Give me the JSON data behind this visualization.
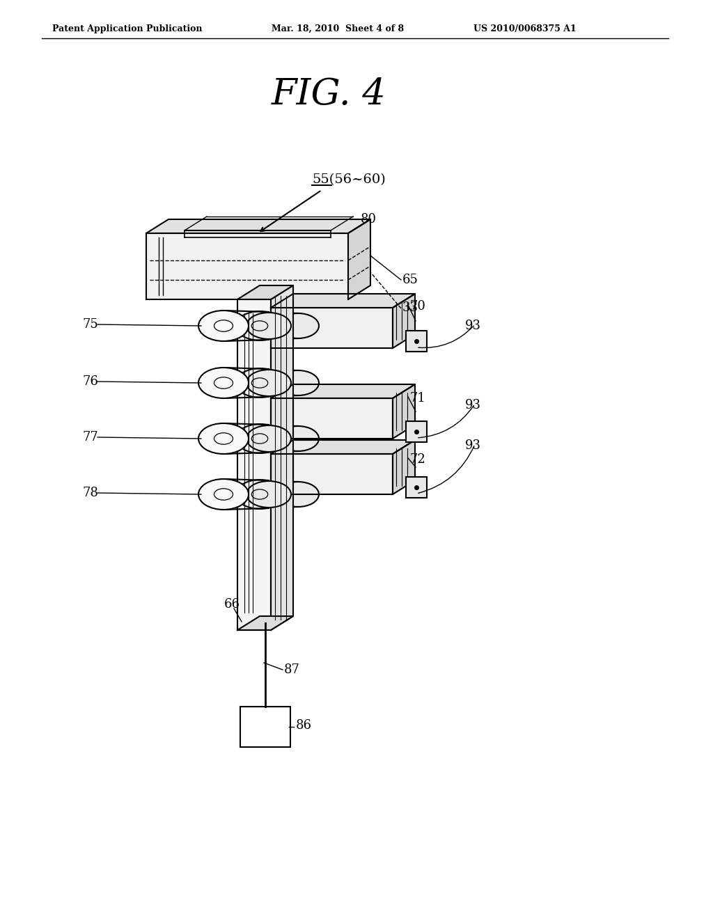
{
  "bg_color": "#ffffff",
  "line_color": "#000000",
  "header_left": "Patent Application Publication",
  "header_center": "Mar. 18, 2010  Sheet 4 of 8",
  "header_right": "US 2010/0068375 A1",
  "fig_title": "FIG. 4",
  "labels": {
    "55_56_60": "55(56~60)",
    "80": "80",
    "65": "65",
    "33": "33",
    "70": "70",
    "75": "75",
    "76": "76",
    "77": "77",
    "78": "78",
    "71": "71",
    "72": "72",
    "66": "66",
    "87": "87",
    "86": "86",
    "93a": "93",
    "93b": "93",
    "93c": "93"
  }
}
